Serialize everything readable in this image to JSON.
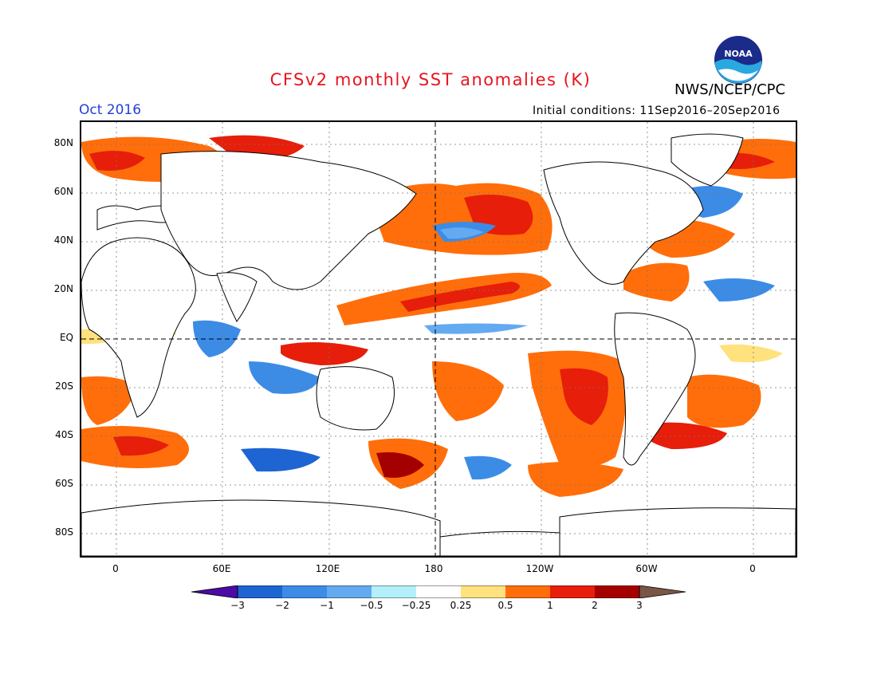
{
  "header": {
    "title": "CFSv2 monthly SST anomalies (K)",
    "org": "NWS/NCEP/CPC",
    "month": "Oct 2016",
    "initial_conditions": "Initial conditions: 11Sep2016–20Sep2016",
    "logo_text": "NOAA"
  },
  "map": {
    "lat_labels": [
      "80N",
      "60N",
      "40N",
      "20N",
      "EQ",
      "20S",
      "40S",
      "60S",
      "80S"
    ],
    "lon_labels": [
      "0",
      "60E",
      "120E",
      "180",
      "120W",
      "60W",
      "0"
    ]
  },
  "colorbar": {
    "labels": [
      "−3",
      "−2",
      "−1",
      "−0.5",
      "−0.25",
      "0.25",
      "0.5",
      "1",
      "2",
      "3"
    ],
    "colors": [
      "#4a0ba6",
      "#1e64d2",
      "#3c8ce6",
      "#64aaf0",
      "#b4f0fa",
      "#ffffff",
      "#ffe17d",
      "#ff6e0a",
      "#e61e0a",
      "#a50000",
      "#7a5646"
    ]
  }
}
